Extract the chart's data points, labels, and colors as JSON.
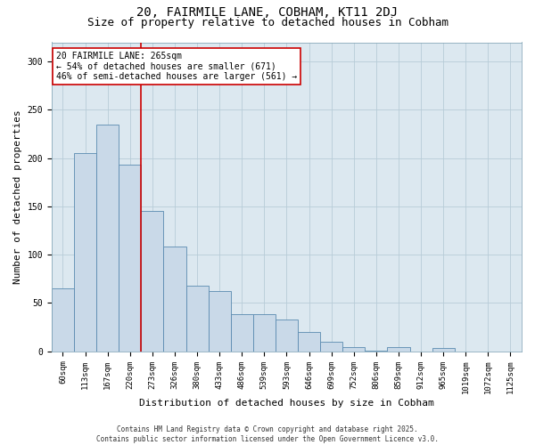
{
  "title1": "20, FAIRMILE LANE, COBHAM, KT11 2DJ",
  "title2": "Size of property relative to detached houses in Cobham",
  "xlabel": "Distribution of detached houses by size in Cobham",
  "ylabel": "Number of detached properties",
  "categories": [
    "60sqm",
    "113sqm",
    "167sqm",
    "220sqm",
    "273sqm",
    "326sqm",
    "380sqm",
    "433sqm",
    "486sqm",
    "539sqm",
    "593sqm",
    "646sqm",
    "699sqm",
    "752sqm",
    "806sqm",
    "859sqm",
    "912sqm",
    "965sqm",
    "1019sqm",
    "1072sqm",
    "1125sqm"
  ],
  "values": [
    65,
    205,
    235,
    193,
    145,
    108,
    68,
    62,
    38,
    38,
    33,
    20,
    10,
    4,
    1,
    4,
    0,
    3,
    0,
    0,
    0
  ],
  "bar_color": "#c9d9e8",
  "bar_edge_color": "#5a8ab0",
  "vline_index": 4,
  "vline_color": "#cc0000",
  "annotation_text": "20 FAIRMILE LANE: 265sqm\n← 54% of detached houses are smaller (671)\n46% of semi-detached houses are larger (561) →",
  "annotation_box_color": "#ffffff",
  "annotation_box_edge_color": "#cc0000",
  "grid_color": "#b8ccd8",
  "background_color": "#dce8f0",
  "ylim": [
    0,
    320
  ],
  "yticks": [
    0,
    50,
    100,
    150,
    200,
    250,
    300
  ],
  "footer": "Contains HM Land Registry data © Crown copyright and database right 2025.\nContains public sector information licensed under the Open Government Licence v3.0.",
  "title_fontsize": 10,
  "subtitle_fontsize": 9,
  "tick_fontsize": 6.5,
  "ylabel_fontsize": 8,
  "xlabel_fontsize": 8,
  "annotation_fontsize": 7,
  "footer_fontsize": 5.5
}
